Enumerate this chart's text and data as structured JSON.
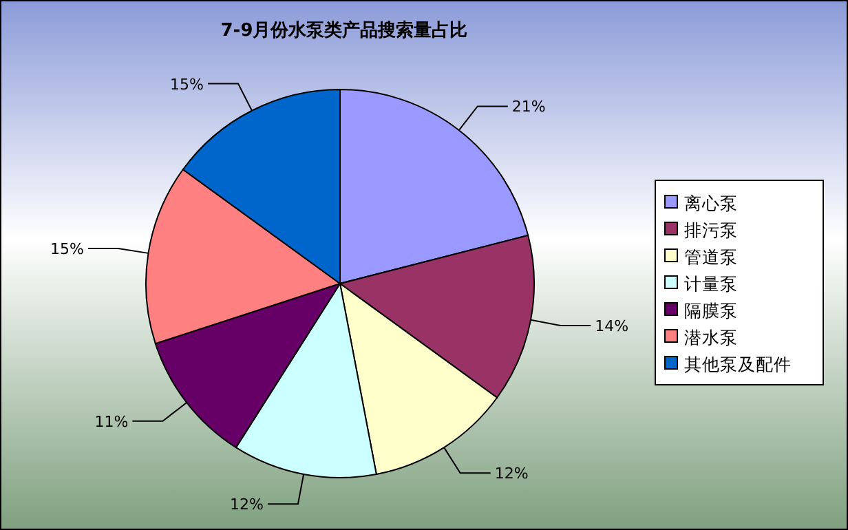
{
  "chart_data": {
    "type": "pie",
    "title": "7-9月份水泵类产品搜索量占比",
    "categories": [
      "离心泵",
      "排污泵",
      "管道泵",
      "计量泵",
      "隔膜泵",
      "潜水泵",
      "其他泵及配件"
    ],
    "values": [
      21,
      14,
      12,
      12,
      11,
      15,
      15
    ],
    "value_labels": [
      "21%",
      "14%",
      "12%",
      "12%",
      "11%",
      "15%",
      "15%"
    ],
    "colors": [
      "#9999ff",
      "#993366",
      "#ffffcc",
      "#ccffff",
      "#660066",
      "#ff8080",
      "#0066cc"
    ],
    "legend": "right"
  }
}
